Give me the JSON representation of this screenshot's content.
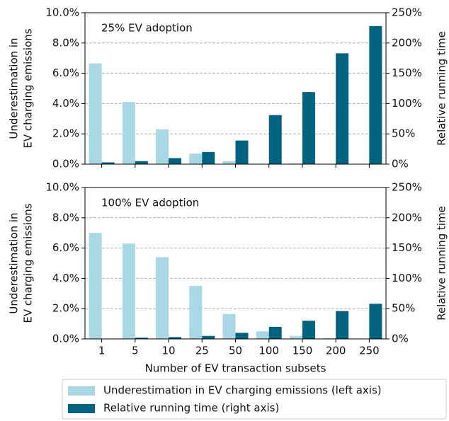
{
  "chart_data": [
    {
      "type": "bar",
      "annotation": "25% EV adoption",
      "categories": [
        null,
        null,
        null,
        null,
        null,
        null,
        null,
        null,
        null
      ],
      "ylabel": [
        "Underestimation in",
        "EV charging emissions"
      ],
      "y2label": "Relative running time",
      "series": [
        {
          "color": "#a8d8e4",
          "values": [
            6.65,
            4.1,
            2.3,
            0.7,
            0.2,
            0,
            0.05,
            0,
            0
          ]
        },
        {
          "color": "#006480",
          "axis": "y2",
          "values": [
            3,
            5,
            10,
            20,
            39,
            81,
            119,
            183,
            228
          ]
        }
      ],
      "ylim": [
        0,
        10
      ],
      "yticks": [
        {
          "value": 0,
          "label": "0.0%"
        },
        {
          "value": 2,
          "label": "2.0%"
        },
        {
          "value": 4,
          "label": "4.0%"
        },
        {
          "value": 6,
          "label": "6.0%"
        },
        {
          "value": 8,
          "label": "8.0%"
        },
        {
          "value": 10,
          "label": "10.0%"
        }
      ],
      "y2lim": [
        0,
        250
      ],
      "y2ticks": [
        {
          "value": 0,
          "label": "0%"
        },
        {
          "value": 50,
          "label": "50%"
        },
        {
          "value": 100,
          "label": "100%"
        },
        {
          "value": 150,
          "label": "150%"
        },
        {
          "value": 200,
          "label": "200%"
        },
        {
          "value": 250,
          "label": "250%"
        }
      ],
      "grid": true
    },
    {
      "type": "bar",
      "annotation": "100% EV adoption",
      "categories": [
        "1",
        "5",
        "10",
        "25",
        "50",
        "100",
        "150",
        "200",
        "250"
      ],
      "xlabel": "Number of EV transaction subsets",
      "ylabel": [
        "Underestimation in",
        "EV charging emissions"
      ],
      "y2label": "Relative running time",
      "series": [
        {
          "name": "Underestimation in EV charging emissions (left axis)",
          "color": "#a8d8e4",
          "values": [
            7.0,
            6.3,
            5.4,
            3.5,
            1.65,
            0.5,
            0.2,
            0.05,
            0
          ]
        },
        {
          "name": "Relative running time (right axis)",
          "color": "#006480",
          "axis": "y2",
          "values": [
            0,
            2,
            3,
            5,
            10,
            20,
            30,
            46,
            58
          ]
        }
      ],
      "ylim": [
        0,
        10
      ],
      "yticks": [
        {
          "value": 0,
          "label": "0.0%"
        },
        {
          "value": 2,
          "label": "2.0%"
        },
        {
          "value": 4,
          "label": "4.0%"
        },
        {
          "value": 6,
          "label": "6.0%"
        },
        {
          "value": 8,
          "label": "8.0%"
        },
        {
          "value": 10,
          "label": "10.0%"
        }
      ],
      "y2lim": [
        0,
        250
      ],
      "y2ticks": [
        {
          "value": 0,
          "label": "0%"
        },
        {
          "value": 50,
          "label": "50%"
        },
        {
          "value": 100,
          "label": "100%"
        },
        {
          "value": 150,
          "label": "150%"
        },
        {
          "value": 200,
          "label": "200%"
        },
        {
          "value": 250,
          "label": "250%"
        }
      ],
      "grid": true
    }
  ]
}
